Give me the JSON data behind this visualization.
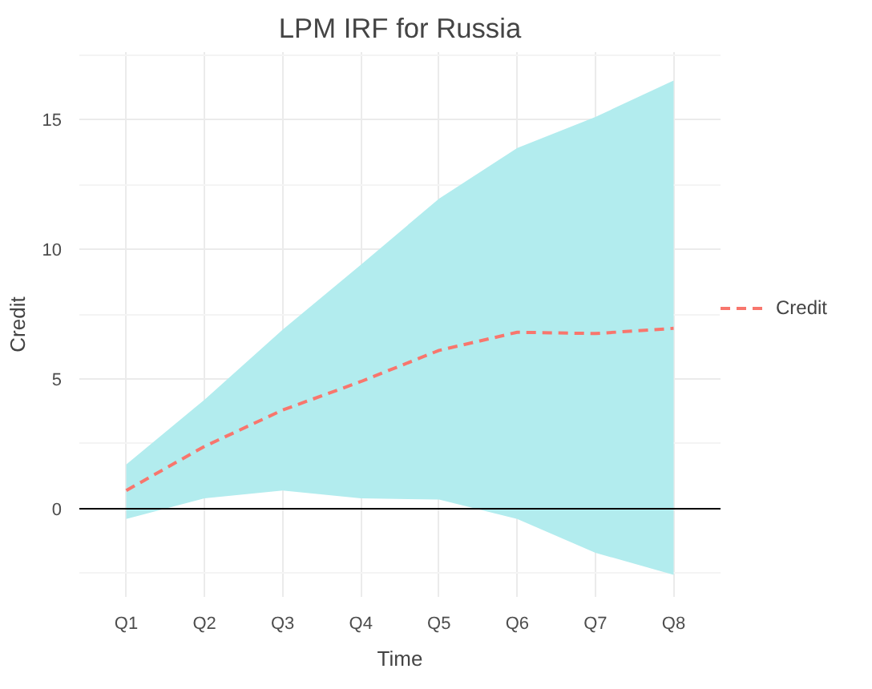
{
  "chart_data": {
    "type": "line",
    "title": "LPM IRF for Russia",
    "xlabel": "Time",
    "ylabel": "Credit",
    "categories": [
      "Q1",
      "Q2",
      "Q3",
      "Q4",
      "Q5",
      "Q6",
      "Q7",
      "Q8"
    ],
    "series": [
      {
        "name": "Credit",
        "color": "#f8766d",
        "values": [
          0.7,
          2.4,
          3.8,
          4.9,
          6.1,
          6.8,
          6.75,
          6.95
        ],
        "lower": [
          -0.4,
          0.4,
          0.7,
          0.4,
          0.35,
          -0.4,
          -1.7,
          -2.55
        ],
        "upper": [
          1.7,
          4.2,
          6.9,
          9.4,
          11.95,
          13.9,
          15.1,
          16.5
        ]
      }
    ],
    "ylim": [
      -3.4,
      17.6
    ],
    "yticks": [
      0,
      5,
      10,
      15
    ],
    "ref_lines": [
      {
        "axis": "y",
        "value": 0,
        "color": "#000000"
      }
    ],
    "line_style": "dashed",
    "grid": true,
    "legend": "right"
  }
}
